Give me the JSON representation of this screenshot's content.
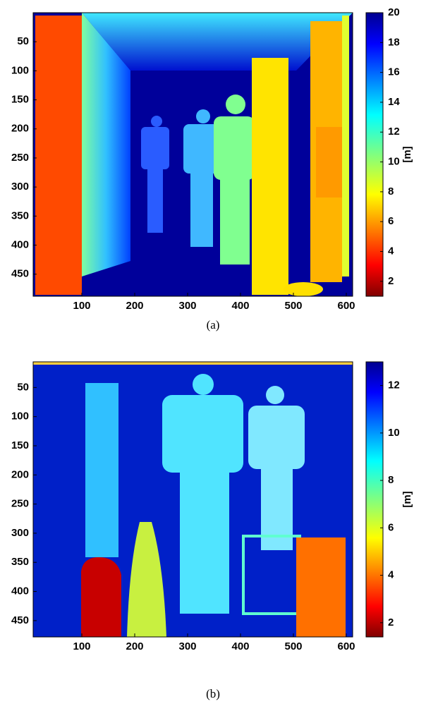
{
  "chart_data": [
    {
      "type": "heatmap",
      "caption": "(a)",
      "colormap": "jet",
      "xlim": [
        8,
        612
      ],
      "xticks": [
        100,
        200,
        300,
        400,
        500,
        600
      ],
      "ylim": [
        0,
        488
      ],
      "yticks": [
        50,
        100,
        150,
        200,
        250,
        300,
        350,
        400,
        450
      ],
      "colorbar": {
        "label": "[m]",
        "lim": [
          1,
          20
        ],
        "ticks": [
          2,
          4,
          6,
          8,
          10,
          12,
          14,
          16,
          18,
          20
        ]
      }
    },
    {
      "type": "heatmap",
      "caption": "(b)",
      "colormap": "jet",
      "xlim": [
        8,
        612
      ],
      "xticks": [
        100,
        200,
        300,
        400,
        500,
        600
      ],
      "ylim": [
        6,
        478
      ],
      "yticks": [
        50,
        100,
        150,
        200,
        250,
        300,
        350,
        400,
        450
      ],
      "colorbar": {
        "label": "[m]",
        "lim": [
          1.4,
          13
        ],
        "ticks": [
          2,
          4,
          6,
          8,
          10,
          12
        ]
      }
    }
  ]
}
